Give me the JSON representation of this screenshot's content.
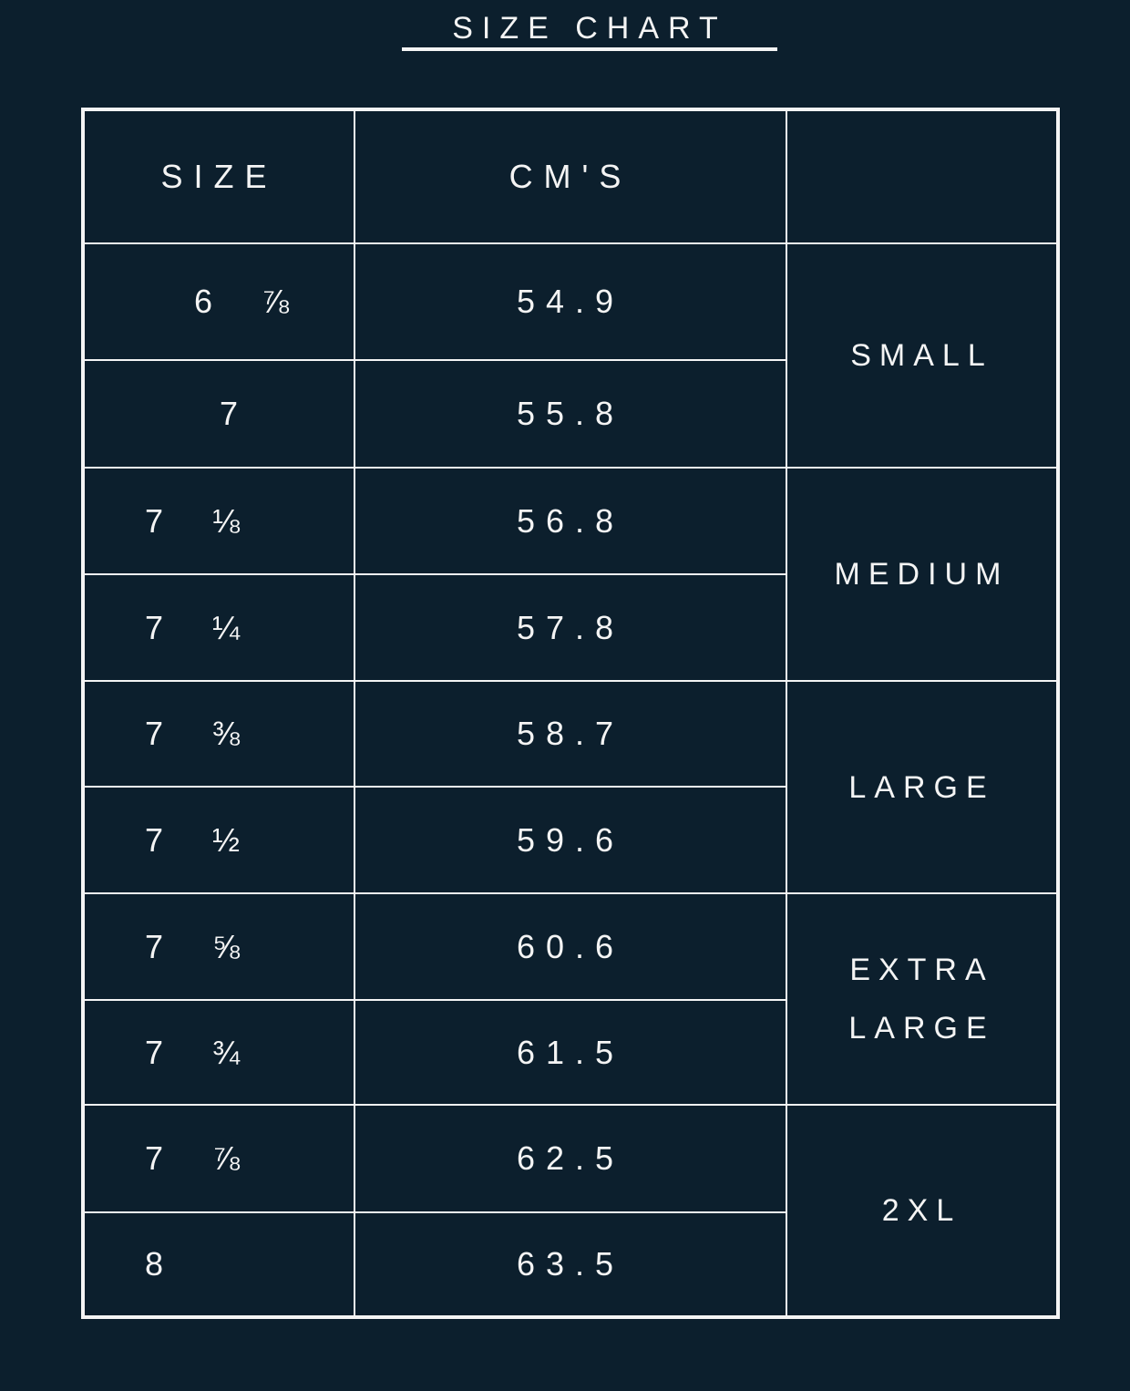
{
  "title": "SIZE CHART",
  "headers": {
    "size": "SIZE",
    "cms": "CM'S",
    "group": ""
  },
  "rows": [
    {
      "size": "6 ⅞",
      "cm": "54.9"
    },
    {
      "size": "7",
      "cm": "55.8"
    },
    {
      "size": "7 ⅛",
      "cm": "56.8"
    },
    {
      "size": "7 ¼",
      "cm": "57.8"
    },
    {
      "size": "7 ⅜",
      "cm": "58.7"
    },
    {
      "size": "7 ½",
      "cm": "59.6"
    },
    {
      "size": "7 ⅝",
      "cm": "60.6"
    },
    {
      "size": "7 ¾",
      "cm": "61.5"
    },
    {
      "size": "7 ⅞",
      "cm": "62.5"
    },
    {
      "size": "8",
      "cm": "63.5"
    }
  ],
  "groups": [
    "SMALL",
    "MEDIUM",
    "LARGE",
    "EXTRA LARGE",
    "2XL"
  ],
  "colors": {
    "background": "#0c1f2d",
    "foreground": "#f4f4f4"
  }
}
